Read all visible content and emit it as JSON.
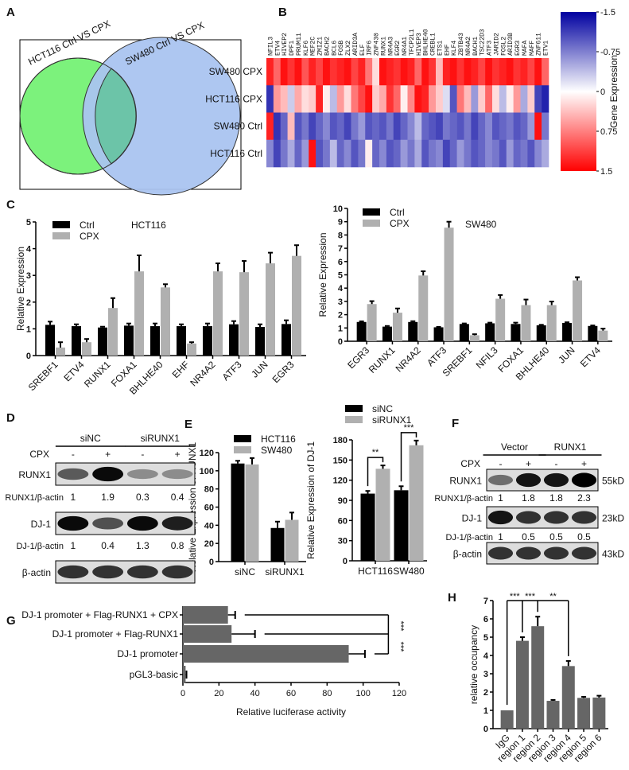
{
  "panels": {
    "A": "A",
    "B": "B",
    "C": "C",
    "D": "D",
    "E": "E",
    "F": "F",
    "G": "G",
    "H": "H"
  },
  "colors": {
    "ctrl": "#000000",
    "cpx": "#b0b0b0",
    "bar_dark": "#666666",
    "venn_left": "#7cf27c",
    "venn_right": "#aac4f0",
    "venn_overlap": "#6cc4a8",
    "heat_high": "#ff0000",
    "heat_mid": "#ffffff",
    "heat_low": "#0000a0"
  },
  "venn": {
    "left_title": "HCT116 Ctrl  VS  CPX",
    "right_title": "SW480 Ctrl  VS  CPX"
  },
  "heatmap": {
    "type": "heatmap",
    "rows": [
      "SW480 CPX",
      "HCT116 CPX",
      "SW480 Ctrl",
      "HCT116 Ctrl"
    ],
    "columns": [
      "NFIL3",
      "ETV4",
      "HIVEP2",
      "DPF1",
      "PRUM11",
      "KLF6",
      "MEF2C",
      "ZMIZ1",
      "BACH2",
      "BCL6",
      "FOSB",
      "ZLX2",
      "ARID3A",
      "ELF",
      "IRF6",
      "ZNF430",
      "RUNX1",
      "NR4A3",
      "EGR2",
      "NR4A1",
      "TFCP2L1",
      "HIVEP3",
      "BHLHE40",
      "CREBL1",
      "ETS1",
      "EHF",
      "KLF4",
      "ZBTB43",
      "NR4A2",
      "BACH1",
      "TSC22D3",
      "ATF3",
      "JARID2",
      "FOSL2",
      "ARID3B",
      "EGR3",
      "MAFA",
      "MAFF",
      "ZNF611",
      "ETV1"
    ],
    "values": [
      [
        1.3,
        0.9,
        1.4,
        1.2,
        1.4,
        1.0,
        1.3,
        1.1,
        1.4,
        1.2,
        1.3,
        1.4,
        1.1,
        1.3,
        0.8,
        0.2,
        1.4,
        1.3,
        1.2,
        1.4,
        1.3,
        0.9,
        1.4,
        1.2,
        0.4,
        1.3,
        1.4,
        1.2,
        1.4,
        1.3,
        1.1,
        1.4,
        1.2,
        1.3,
        1.4,
        1.2,
        1.3,
        1.1,
        1.4,
        0.9
      ],
      [
        -1.2,
        0.6,
        0.4,
        -0.3,
        0.5,
        0.2,
        0.3,
        1.3,
        0.1,
        -0.4,
        0.6,
        0.2,
        0.8,
        1.1,
        1.4,
        0.3,
        0.5,
        1.2,
        0.9,
        0.1,
        0.7,
        1.4,
        1.3,
        0.6,
        0.3,
        -0.2,
        -1.0,
        0.8,
        0.4,
        -0.6,
        0.3,
        0.9,
        0.2,
        -0.4,
        0.1,
        0.6,
        -0.5,
        0.3,
        -1.1,
        -1.3
      ],
      [
        1.3,
        -1.2,
        -0.9,
        0.4,
        -1.0,
        -0.8,
        -1.1,
        -0.9,
        -0.7,
        -1.0,
        -0.9,
        -1.1,
        -0.8,
        -0.6,
        -1.0,
        -0.9,
        -1.0,
        -0.8,
        -1.1,
        -0.9,
        -0.7,
        -0.4,
        -0.9,
        -1.0,
        -1.1,
        -0.8,
        -0.9,
        -1.0,
        -0.8,
        -1.1,
        -0.9,
        -0.7,
        -1.0,
        -0.9,
        -0.8,
        -1.0,
        -0.9,
        -0.6,
        1.4,
        -0.8
      ],
      [
        -0.7,
        -1.1,
        -0.8,
        -0.5,
        -0.9,
        -0.6,
        1.4,
        -1.0,
        -0.8,
        -0.4,
        -0.9,
        -0.7,
        -1.0,
        -0.8,
        0.1,
        -0.9,
        -0.7,
        -1.0,
        -0.9,
        -0.6,
        -0.8,
        -0.5,
        -1.0,
        -0.8,
        -0.7,
        -1.1,
        -0.9,
        -0.6,
        -0.8,
        -1.0,
        -0.9,
        -0.7,
        -0.8,
        -1.0,
        -0.6,
        -0.9,
        -0.8,
        -1.0,
        -0.7,
        -0.5
      ]
    ],
    "colorbar": {
      "ticks": [
        "-1.5",
        "-0.75",
        "0",
        "0.75",
        "1.5"
      ],
      "label": "Gene Expression",
      "range": [
        -1.5,
        1.5
      ]
    }
  },
  "chart_data": [
    {
      "id": "C-left",
      "type": "bar",
      "title": "HCT116",
      "ylabel": "Relative Expression",
      "ylim": [
        0,
        5
      ],
      "yticks": [
        0,
        1,
        2,
        3,
        4,
        5
      ],
      "categories": [
        "SREBF1",
        "ETV4",
        "RUNX1",
        "FOXA1",
        "BHLHE40",
        "EHF",
        "NR4A2",
        "ATF3",
        "JUN",
        "EGR3"
      ],
      "series": [
        {
          "name": "Ctrl",
          "values": [
            1.15,
            1.1,
            1.05,
            1.12,
            1.1,
            1.1,
            1.1,
            1.17,
            1.07,
            1.18
          ],
          "errors": [
            0.12,
            0.07,
            0.03,
            0.08,
            0.1,
            0.07,
            0.1,
            0.12,
            0.1,
            0.14
          ]
        },
        {
          "name": "CPX",
          "values": [
            0.3,
            0.5,
            1.78,
            3.15,
            2.55,
            0.45,
            3.15,
            3.12,
            3.45,
            3.73
          ],
          "errors": [
            0.2,
            0.12,
            0.37,
            0.6,
            0.12,
            0.05,
            0.3,
            0.42,
            0.4,
            0.4
          ]
        }
      ],
      "legend": "top-left"
    },
    {
      "id": "C-right",
      "type": "bar",
      "title": "SW480",
      "ylabel": "Relative Expression",
      "ylim": [
        0,
        10
      ],
      "yticks": [
        0,
        1,
        2,
        3,
        4,
        5,
        6,
        7,
        8,
        9,
        10
      ],
      "categories": [
        "EGR3",
        "RUNX1",
        "NR4A2",
        "ATF3",
        "SREBF1",
        "NFIL3",
        "FOXA1",
        "BHLHE40",
        "JUN",
        "ETV4"
      ],
      "series": [
        {
          "name": "Ctrl",
          "values": [
            1.45,
            1.1,
            1.45,
            1.05,
            1.3,
            1.35,
            1.3,
            1.2,
            1.38,
            1.15
          ],
          "errors": [
            0.05,
            0.05,
            0.06,
            0.03,
            0.04,
            0.05,
            0.1,
            0.04,
            0.05,
            0.04
          ]
        },
        {
          "name": "CPX",
          "values": [
            2.8,
            2.15,
            4.95,
            8.55,
            0.45,
            3.2,
            2.72,
            2.72,
            4.58,
            0.8
          ],
          "errors": [
            0.22,
            0.32,
            0.32,
            0.45,
            0.08,
            0.28,
            0.42,
            0.27,
            0.24,
            0.15
          ]
        }
      ],
      "legend": "top-left"
    },
    {
      "id": "E-left",
      "type": "bar",
      "ylabel": "Relative Expression of RUNX1",
      "ylim": [
        0,
        120
      ],
      "yticks": [
        0,
        20,
        40,
        60,
        80,
        100,
        120
      ],
      "categories": [
        "siNC",
        "siRUNX1"
      ],
      "series": [
        {
          "name": "HCT116",
          "values": [
            108,
            37
          ],
          "errors": [
            3,
            7
          ]
        },
        {
          "name": "SW480",
          "values": [
            107,
            46
          ],
          "errors": [
            7,
            8
          ]
        }
      ],
      "legend": "top-right"
    },
    {
      "id": "E-right",
      "type": "bar",
      "ylabel": "Relative Expression of DJ-1",
      "ylim": [
        0,
        180
      ],
      "yticks": [
        0,
        30,
        60,
        90,
        120,
        150,
        180
      ],
      "categories": [
        "HCT116",
        "SW480"
      ],
      "series": [
        {
          "name": "siNC",
          "values": [
            100,
            105
          ],
          "errors": [
            4,
            6
          ]
        },
        {
          "name": "siRUNX1",
          "values": [
            137,
            172
          ],
          "errors": [
            5,
            7
          ]
        }
      ],
      "significance": [
        "**",
        "***"
      ],
      "legend": "top"
    },
    {
      "id": "G",
      "type": "bar",
      "orientation": "horizontal",
      "xlabel": "Relative luciferase activity",
      "xlim": [
        0,
        120
      ],
      "xticks": [
        0,
        20,
        40,
        60,
        80,
        100,
        120
      ],
      "categories": [
        "DJ-1 promoter + Flag-RUNX1 + CPX",
        "DJ-1 promoter + Flag-RUNX1",
        "DJ-1 promoter",
        "pGL3-basic"
      ],
      "values": [
        25,
        27,
        92,
        1.5
      ],
      "errors": [
        4,
        13,
        9,
        0.5
      ],
      "significance": [
        "***",
        "***"
      ]
    },
    {
      "id": "H",
      "type": "bar",
      "ylabel": "relative occupancy",
      "ylim": [
        0,
        7
      ],
      "yticks": [
        0,
        1,
        2,
        3,
        4,
        5,
        6,
        7
      ],
      "categories": [
        "IgG",
        "region 1",
        "region 2",
        "region 3",
        "region 4",
        "region 5",
        "region 6"
      ],
      "values": [
        1,
        4.8,
        5.6,
        1.52,
        3.42,
        1.68,
        1.7
      ],
      "errors": [
        0,
        0.2,
        0.52,
        0.05,
        0.28,
        0.06,
        0.1
      ],
      "significance": [
        "***",
        "***",
        "**"
      ]
    }
  ],
  "blotD": {
    "groups": [
      "siNC",
      "siRUNX1"
    ],
    "treatment_label": "CPX",
    "treatment": [
      "-",
      "+",
      "-",
      "+"
    ],
    "rows": [
      {
        "label": "RUNX1",
        "intensity": [
          0.55,
          0.95,
          0.3,
          0.3
        ]
      },
      {
        "label": "DJ-1",
        "intensity": [
          0.95,
          0.6,
          0.95,
          0.85
        ]
      },
      {
        "label": "β-actin",
        "intensity": [
          0.75,
          0.75,
          0.75,
          0.75
        ]
      }
    ],
    "quant": [
      {
        "label": "RUNX1/β-actin",
        "values": [
          "1",
          "1.9",
          "0.3",
          "0.4"
        ]
      },
      {
        "label": "DJ-1/β-actin",
        "values": [
          "1",
          "0.4",
          "1.3",
          "0.8"
        ]
      }
    ]
  },
  "blotF": {
    "groups": [
      "Vector",
      "RUNX1"
    ],
    "treatment_label": "CPX",
    "treatment": [
      "-",
      "+",
      "-",
      "+"
    ],
    "rows": [
      {
        "label": "RUNX1",
        "size": "55kD",
        "intensity": [
          0.45,
          0.9,
          0.9,
          1.0
        ]
      },
      {
        "label": "DJ-1",
        "size": "23kD",
        "intensity": [
          0.9,
          0.75,
          0.75,
          0.75
        ]
      },
      {
        "label": "β-actin",
        "size": "43kD",
        "intensity": [
          0.75,
          0.75,
          0.75,
          0.75
        ]
      }
    ],
    "quant": [
      {
        "label": "RUNX1/β-actin",
        "values": [
          "1",
          "1.8",
          "1.8",
          "2.3"
        ]
      },
      {
        "label": "DJ-1/β-actin",
        "values": [
          "1",
          "0.5",
          "0.5",
          "0.5"
        ]
      }
    ]
  }
}
